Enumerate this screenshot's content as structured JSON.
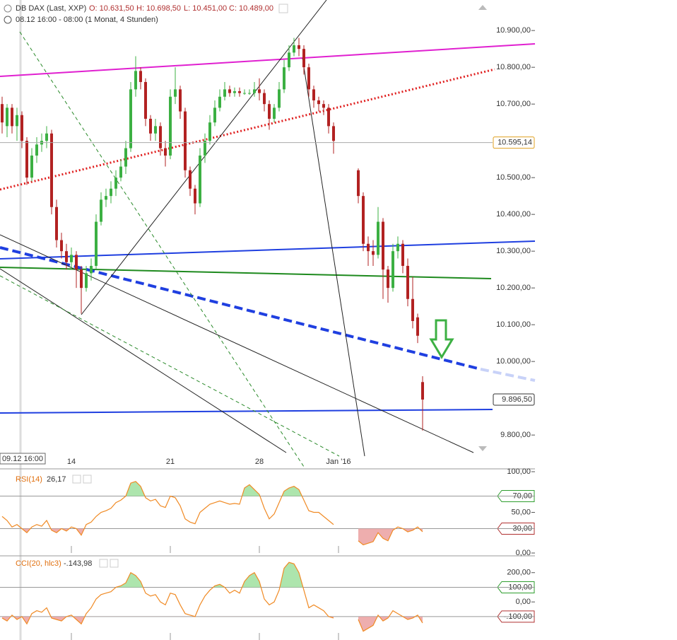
{
  "header": {
    "instrument": "DB DAX (Last, XXP)",
    "open": "O: 10.631,50",
    "high": "H: 10.698,50",
    "low": "L: 10.451,00",
    "close": "C: 10.489,00",
    "period": "08.12 16:00 - 08:00 (1 Monat, 4 Stunden)"
  },
  "crosshair_label": "09.12 16:00",
  "chart_data": [
    {
      "type": "candlestick",
      "categories": [
        null,
        null,
        null,
        null,
        null,
        null,
        null,
        null,
        null,
        null,
        null,
        null,
        null,
        null,
        "14",
        null,
        null,
        null,
        null,
        null,
        null,
        null,
        null,
        null,
        null,
        null,
        null,
        null,
        null,
        null,
        null,
        null,
        null,
        null,
        "21",
        null,
        null,
        null,
        null,
        null,
        null,
        null,
        null,
        null,
        null,
        null,
        null,
        null,
        null,
        null,
        null,
        null,
        "28",
        null,
        null,
        null,
        null,
        null,
        null,
        null,
        null,
        null,
        null,
        null,
        null,
        null,
        null,
        null,
        "Jan '16",
        null,
        null,
        null,
        null,
        null,
        null,
        null,
        null,
        null,
        null,
        null,
        null,
        null,
        null,
        null,
        null,
        null
      ],
      "open": [
        10700,
        10640,
        10690,
        10640,
        10670,
        10600,
        10500,
        10560,
        10590,
        10600,
        10620,
        10420,
        10330,
        10300,
        10270,
        10290,
        10250,
        10200,
        10240,
        10260,
        10380,
        10440,
        10450,
        10470,
        10500,
        10530,
        10580,
        10740,
        10790,
        10760,
        10660,
        10620,
        10640,
        10580,
        10560,
        10720,
        10740,
        10680,
        10520,
        10470,
        10430,
        10560,
        10600,
        10650,
        10690,
        10720,
        10740,
        10730,
        10735,
        10730,
        10730,
        10730,
        10740,
        10730,
        10700,
        10660,
        10690,
        10740,
        10800,
        10840,
        10860,
        10850,
        10800,
        10740,
        10710,
        10700,
        10690,
        10640,
        null,
        null,
        null,
        null,
        10520,
        10450,
        10320,
        10300,
        10290,
        10380,
        10250,
        10200,
        10300,
        10320,
        10260,
        10170,
        10120,
        9944
      ],
      "high": [
        10720,
        10700,
        10700,
        10690,
        10680,
        10610,
        10580,
        10610,
        10620,
        10640,
        10630,
        10440,
        10350,
        10320,
        10310,
        10300,
        10260,
        10260,
        10280,
        10400,
        10460,
        10470,
        10490,
        10520,
        10550,
        10600,
        10760,
        10830,
        10800,
        10770,
        10670,
        10660,
        10650,
        10600,
        10740,
        10800,
        10750,
        10690,
        10530,
        10480,
        10580,
        10620,
        10670,
        10710,
        10740,
        10760,
        10750,
        10745,
        10745,
        10740,
        10740,
        10760,
        10770,
        10740,
        10710,
        10700,
        10760,
        10820,
        10860,
        10880,
        10880,
        10860,
        10810,
        10750,
        10720,
        10710,
        10700,
        10650,
        null,
        null,
        null,
        null,
        10525,
        10460,
        10340,
        10330,
        10420,
        10390,
        10260,
        10320,
        10340,
        10330,
        10280,
        10230,
        10130,
        9960
      ],
      "low": [
        10620,
        10610,
        10620,
        10600,
        10580,
        10480,
        10490,
        10540,
        10570,
        10580,
        10400,
        10310,
        10280,
        10250,
        10250,
        10200,
        10130,
        10190,
        10220,
        10250,
        10370,
        10420,
        10430,
        10450,
        10490,
        10510,
        10570,
        10720,
        10740,
        10640,
        10600,
        10600,
        10560,
        10530,
        10550,
        10700,
        10660,
        10500,
        10450,
        10400,
        10420,
        10540,
        10590,
        10640,
        10680,
        10710,
        10720,
        10720,
        10720,
        10725,
        10725,
        10720,
        10710,
        10680,
        10630,
        10650,
        10680,
        10730,
        10790,
        10830,
        10830,
        10780,
        10720,
        10690,
        10680,
        10670,
        10620,
        10565,
        null,
        null,
        null,
        null,
        10430,
        10300,
        10260,
        10260,
        10280,
        10170,
        10160,
        10190,
        10280,
        10240,
        10150,
        10090,
        10050,
        9812
      ],
      "close": [
        10650,
        10690,
        10640,
        10670,
        10600,
        10500,
        10560,
        10590,
        10600,
        10620,
        10420,
        10330,
        10300,
        10270,
        10290,
        10250,
        10200,
        10240,
        10260,
        10380,
        10440,
        10450,
        10470,
        10500,
        10530,
        10580,
        10740,
        10790,
        10760,
        10660,
        10620,
        10640,
        10580,
        10560,
        10720,
        10740,
        10680,
        10520,
        10470,
        10430,
        10560,
        10600,
        10650,
        10690,
        10720,
        10740,
        10730,
        10735,
        10730,
        10730,
        10730,
        10740,
        10730,
        10700,
        10660,
        10690,
        10740,
        10800,
        10840,
        10860,
        10850,
        10800,
        10740,
        10710,
        10700,
        10690,
        10640,
        10600,
        null,
        null,
        null,
        null,
        10450,
        10320,
        10300,
        10290,
        10380,
        10250,
        10200,
        10300,
        10320,
        10260,
        10170,
        10110,
        10070,
        9896.5
      ],
      "up_color": "#3cb043",
      "down_color": "#b22222",
      "ylim": [
        9708,
        10983
      ],
      "yticks": [
        {
          "value": 10900,
          "label": "10.900,00"
        },
        {
          "value": 10800,
          "label": "10.800,00"
        },
        {
          "value": 10700,
          "label": "10.700,00"
        },
        {
          "value": 10500,
          "label": "10.500,00"
        },
        {
          "value": 10400,
          "label": "10.400,00"
        },
        {
          "value": 10300,
          "label": "10.300,00"
        },
        {
          "value": 10200,
          "label": "10.200,00"
        },
        {
          "value": 10100,
          "label": "10.100,00"
        },
        {
          "value": 10000,
          "label": "10.000,00"
        },
        {
          "value": 9800,
          "label": "9.800,00"
        }
      ],
      "price_markers": [
        {
          "value": 10595.14,
          "label": "10.595,14",
          "color": "#e0a020",
          "line": true
        },
        {
          "value": 9896.5,
          "label": "9.896,50",
          "color": "#333333",
          "line": false
        }
      ]
    },
    {
      "type": "line",
      "title": "RSI(14)",
      "last_label": "26,17",
      "series": [
        {
          "name": "RSI(14)",
          "color": "#f08a24",
          "values": [
            45,
            40,
            32,
            35,
            30,
            25,
            32,
            35,
            33,
            40,
            28,
            25,
            30,
            27,
            32,
            30,
            22,
            35,
            38,
            45,
            50,
            52,
            55,
            62,
            65,
            70,
            86,
            88,
            82,
            68,
            64,
            66,
            58,
            56,
            70,
            68,
            58,
            42,
            38,
            36,
            50,
            55,
            60,
            62,
            64,
            62,
            60,
            61,
            60,
            80,
            84,
            78,
            72,
            55,
            42,
            48,
            62,
            76,
            80,
            82,
            78,
            65,
            52,
            50,
            50,
            45,
            40,
            35,
            null,
            null,
            null,
            null,
            15,
            10,
            12,
            14,
            25,
            18,
            15,
            28,
            32,
            30,
            26,
            28,
            32,
            26.17
          ]
        }
      ],
      "ylim": [
        0,
        100
      ],
      "yticks": [
        {
          "value": 100,
          "label": "100,00"
        },
        {
          "value": 70,
          "label": "70,00"
        },
        {
          "value": 50,
          "label": "50,00"
        },
        {
          "value": 30,
          "label": "30,00"
        },
        {
          "value": 0,
          "label": "0,00"
        }
      ],
      "upper_band": 70,
      "lower_band": 30,
      "upper_color": "#2e9e2e",
      "lower_color": "#b03030"
    },
    {
      "type": "line",
      "title": "CCI(20, hlc3)",
      "last_label": "-.143,98",
      "series": [
        {
          "name": "CCI(20, hlc3)",
          "color": "#f08a24",
          "values": [
            -110,
            -130,
            -90,
            -120,
            -100,
            -150,
            -80,
            -60,
            -70,
            -40,
            -110,
            -120,
            -130,
            -100,
            -90,
            -120,
            -150,
            -80,
            -40,
            20,
            50,
            60,
            70,
            100,
            110,
            130,
            200,
            180,
            140,
            60,
            40,
            50,
            0,
            -20,
            60,
            50,
            -20,
            -80,
            -90,
            -100,
            -20,
            40,
            80,
            110,
            120,
            100,
            60,
            80,
            60,
            140,
            180,
            200,
            140,
            20,
            -20,
            0,
            80,
            230,
            270,
            260,
            200,
            80,
            -40,
            -20,
            -40,
            -60,
            -100,
            -110,
            null,
            null,
            null,
            null,
            -120,
            -200,
            -180,
            -160,
            -90,
            -130,
            -110,
            -60,
            -80,
            -100,
            -120,
            -110,
            -90,
            -143.98
          ]
        }
      ],
      "ylim": [
        -260,
        305
      ],
      "yticks": [
        {
          "value": 200,
          "label": "200,00"
        },
        {
          "value": 100,
          "label": "100,00"
        },
        {
          "value": 0,
          "label": "0,00"
        },
        {
          "value": -100,
          "label": "-.100,00"
        }
      ],
      "upper_band": 100,
      "lower_band": -100,
      "upper_color": "#2e9e2e",
      "lower_color": "#b03030"
    }
  ]
}
